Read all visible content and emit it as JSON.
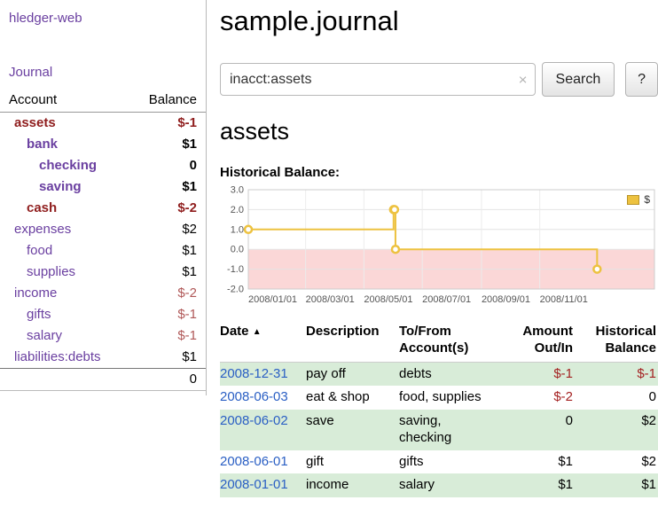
{
  "app": {
    "title": "hledger-web",
    "nav_journal": "Journal"
  },
  "sidebar": {
    "accounts_header": "Account",
    "balance_header": "Balance",
    "accounts": [
      {
        "name": "assets",
        "balance": "$-1",
        "depth": 0,
        "bold": true,
        "negative": true,
        "balance_negative": true
      },
      {
        "name": "bank",
        "balance": "$1",
        "depth": 1,
        "bold": true,
        "negative": false,
        "balance_negative": false
      },
      {
        "name": "checking",
        "balance": "0",
        "depth": 2,
        "bold": true,
        "negative": false,
        "balance_negative": false
      },
      {
        "name": "saving",
        "balance": "$1",
        "depth": 2,
        "bold": true,
        "negative": false,
        "balance_negative": false
      },
      {
        "name": "cash",
        "balance": "$-2",
        "depth": 1,
        "bold": true,
        "negative": true,
        "balance_negative": true
      },
      {
        "name": "expenses",
        "balance": "$2",
        "depth": 0,
        "bold": false,
        "negative": false,
        "balance_negative": false
      },
      {
        "name": "food",
        "balance": "$1",
        "depth": 1,
        "bold": false,
        "negative": false,
        "balance_negative": false
      },
      {
        "name": "supplies",
        "balance": "$1",
        "depth": 1,
        "bold": false,
        "negative": false,
        "balance_negative": false
      },
      {
        "name": "income",
        "balance": "$-2",
        "depth": 0,
        "bold": false,
        "negative": false,
        "balance_negative": true
      },
      {
        "name": "gifts",
        "balance": "$-1",
        "depth": 1,
        "bold": false,
        "negative": false,
        "balance_negative": true
      },
      {
        "name": "salary",
        "balance": "$-1",
        "depth": 1,
        "bold": false,
        "negative": false,
        "balance_negative": true
      },
      {
        "name": "liabilities:debts",
        "balance": "$1",
        "depth": 0,
        "bold": false,
        "negative": false,
        "balance_negative": false
      }
    ],
    "total": "0"
  },
  "header": {
    "title": "sample.journal"
  },
  "search": {
    "value": "inacct:assets",
    "clear_icon": "×",
    "search_button": "Search",
    "help_button": "?"
  },
  "content": {
    "heading": "assets",
    "chart_title": "Historical Balance:"
  },
  "chart_data": {
    "type": "line",
    "step": true,
    "title": "Historical Balance",
    "legend": "$",
    "legend_position": "top-right",
    "series": [
      {
        "name": "$",
        "color": "#edc240",
        "points": [
          [
            "2008-01-01",
            1
          ],
          [
            "2008-06-01",
            2
          ],
          [
            "2008-06-02",
            2
          ],
          [
            "2008-06-03",
            0
          ],
          [
            "2008-12-31",
            -1
          ]
        ]
      }
    ],
    "ylim": [
      -2,
      3
    ],
    "yticks": [
      "3.0",
      "2.0",
      "1.0",
      "0.0",
      "-1.0",
      "-2.0"
    ],
    "xticks": [
      "2008/01/01",
      "2008/03/01",
      "2008/05/01",
      "2008/07/01",
      "2008/09/01",
      "2008/11/01"
    ],
    "xlim": [
      "2008-01-01",
      "2009-03-01"
    ],
    "negative_region_color": "#fbd7d7",
    "grid": true
  },
  "register": {
    "headers": {
      "date": "Date",
      "sort_indicator": "▲",
      "description": "Description",
      "accounts": "To/From\nAccount(s)",
      "amount": "Amount\nOut/In",
      "balance": "Historical\nBalance"
    },
    "rows": [
      {
        "date": "2008-12-31",
        "description": "pay off",
        "accounts": "debts",
        "amount": "$-1",
        "amount_negative": true,
        "balance": "$-1",
        "balance_negative": true
      },
      {
        "date": "2008-06-03",
        "description": "eat & shop",
        "accounts": "food, supplies",
        "amount": "$-2",
        "amount_negative": true,
        "balance": "0",
        "balance_negative": false
      },
      {
        "date": "2008-06-02",
        "description": "save",
        "accounts": "saving, checking",
        "amount": "0",
        "amount_negative": false,
        "balance": "$2",
        "balance_negative": false
      },
      {
        "date": "2008-06-01",
        "description": "gift",
        "accounts": "gifts",
        "amount": "$1",
        "amount_negative": false,
        "balance": "$2",
        "balance_negative": false
      },
      {
        "date": "2008-01-01",
        "description": "income",
        "accounts": "salary",
        "amount": "$1",
        "amount_negative": false,
        "balance": "$1",
        "balance_negative": false
      }
    ]
  },
  "colors": {
    "accent_purple": "#6a3fa0",
    "negative_strong": "#8f1d1d",
    "negative_light": "#b05858",
    "table_negative": "#a42222",
    "link_blue": "#2a5fc4",
    "row_stripe": "#d8ecd8"
  }
}
